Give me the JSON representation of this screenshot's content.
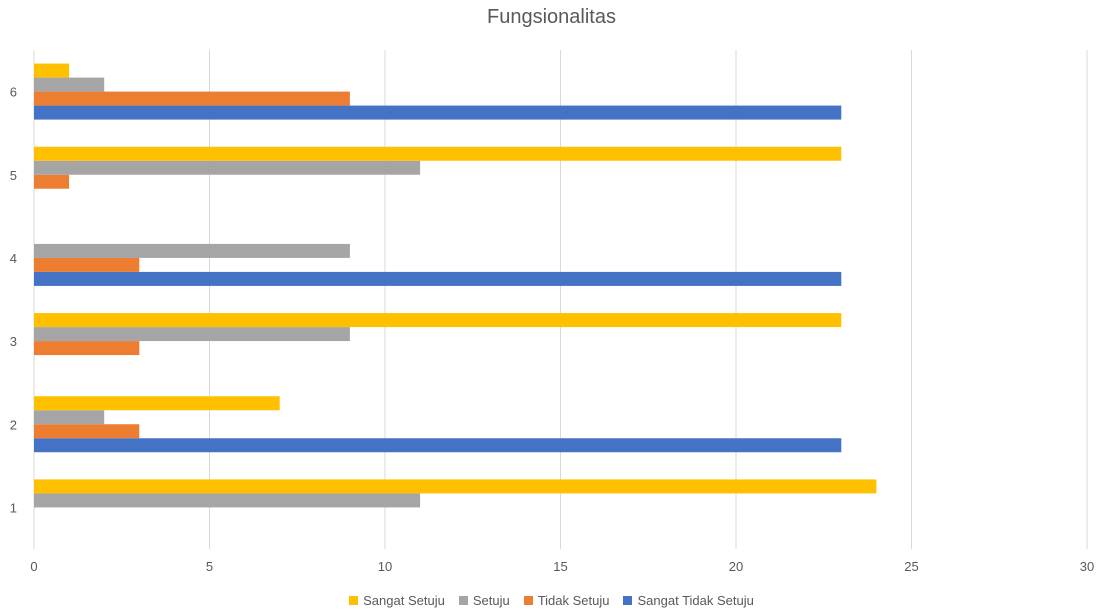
{
  "chart_data": {
    "type": "bar",
    "orientation": "horizontal",
    "title": "Fungsionalitas",
    "xlabel": "",
    "ylabel": "",
    "categories": [
      "1",
      "2",
      "3",
      "4",
      "5",
      "6"
    ],
    "xlim": [
      0,
      30
    ],
    "x_ticks": [
      0,
      5,
      10,
      15,
      20,
      25,
      30
    ],
    "grid": "vertical",
    "legend_position": "bottom",
    "series": [
      {
        "name": "Sangat Tidak Setuju",
        "color": "#4472C4",
        "values": [
          0,
          23,
          0,
          23,
          0,
          23
        ]
      },
      {
        "name": "Tidak Setuju",
        "color": "#ED7D31",
        "values": [
          0,
          3,
          3,
          3,
          1,
          9
        ]
      },
      {
        "name": "Setuju",
        "color": "#A5A5A5",
        "values": [
          11,
          2,
          9,
          9,
          11,
          2
        ]
      },
      {
        "name": "Sangat Setuju",
        "color": "#FFC000",
        "values": [
          24,
          7,
          23,
          0,
          23,
          1
        ]
      }
    ],
    "legend_order": [
      "Sangat Setuju",
      "Setuju",
      "Tidak Setuju",
      "Sangat Tidak Setuju"
    ]
  }
}
